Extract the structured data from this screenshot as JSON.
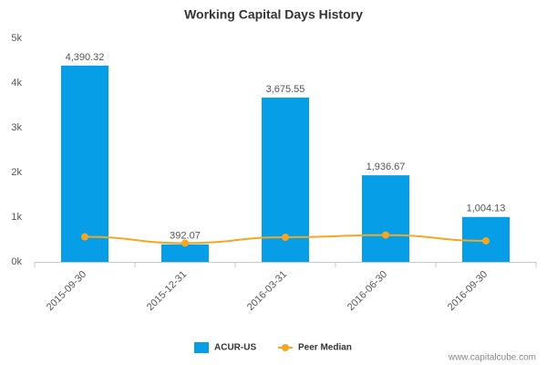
{
  "chart_data": {
    "type": "bar",
    "title": "Working Capital Days History",
    "categories": [
      "2015-09-30",
      "2015-12-31",
      "2016-03-31",
      "2016-06-30",
      "2016-09-30"
    ],
    "series": [
      {
        "name": "ACUR-US",
        "color": "#069ee6",
        "values": [
          4390.32,
          392.07,
          3675.55,
          1936.67,
          1004.13
        ],
        "value_labels": [
          "4,390.32",
          "392.07",
          "3,675.55",
          "1,936.67",
          "1,004.13"
        ]
      },
      {
        "name": "Peer Median",
        "color": "#f5a623",
        "type": "line",
        "values": [
          560,
          420,
          550,
          600,
          470
        ]
      }
    ],
    "ylim": [
      0,
      5000
    ],
    "yticks": [
      {
        "value": 0,
        "label": "0k"
      },
      {
        "value": 1000,
        "label": "1k"
      },
      {
        "value": 2000,
        "label": "2k"
      },
      {
        "value": 3000,
        "label": "3k"
      },
      {
        "value": 4000,
        "label": "4k"
      },
      {
        "value": 5000,
        "label": "5k"
      }
    ],
    "grid": false,
    "legend": "bottom",
    "watermark": "www.capitalcube.com"
  }
}
